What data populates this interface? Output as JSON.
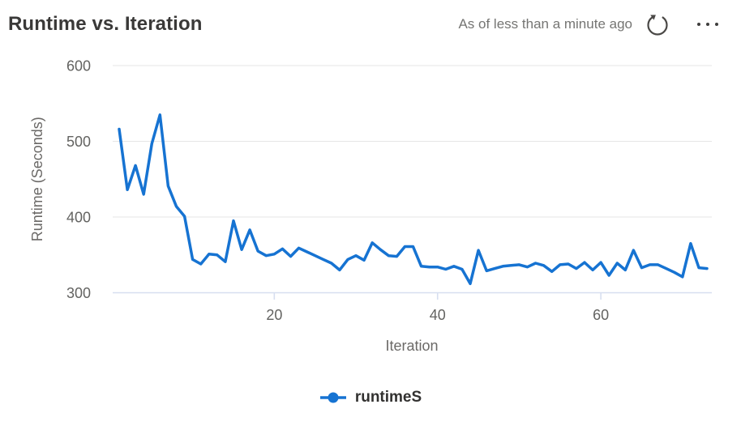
{
  "header": {
    "title": "Runtime vs. Iteration",
    "as_of_text": "As of less than a minute ago",
    "refresh_icon": "circular-refresh-arrow",
    "more_icon": "horizontal-ellipsis"
  },
  "colors": {
    "line": "#1673d2",
    "gridline": "#e6e6e6",
    "axis_baseline": "#d7dff0",
    "tick_text": "#636361",
    "title_text": "#3a3938",
    "as_of_text": "#757573",
    "icon": "#4a4846",
    "legend_text": "#323130"
  },
  "chart_data": {
    "type": "line",
    "title": "Runtime vs. Iteration",
    "xlabel": "Iteration",
    "ylabel": "Runtime (Seconds)",
    "xlim": [
      1,
      73
    ],
    "ylim": [
      300,
      600
    ],
    "yticks": [
      600,
      500,
      400,
      300
    ],
    "xticks": [
      20,
      40,
      60
    ],
    "grid": "horizontal-only",
    "legend_position": "bottom-center",
    "marker": "none-on-line, dot-in-legend",
    "series": [
      {
        "name": "runtimeS",
        "color": "#1673d2",
        "x_start": 1,
        "x_step": 1,
        "values": [
          516,
          436,
          468,
          430,
          497,
          535,
          441,
          414,
          401,
          344,
          338,
          351,
          350,
          341,
          395,
          357,
          383,
          355,
          349,
          351,
          358,
          348,
          359,
          354,
          349,
          344,
          339,
          330,
          344,
          349,
          343,
          366,
          357,
          349,
          348,
          361,
          361,
          335,
          334,
          334,
          331,
          335,
          331,
          312,
          356,
          329,
          332,
          335,
          336,
          337,
          334,
          339,
          336,
          328,
          337,
          338,
          332,
          340,
          330,
          340,
          323,
          339,
          330,
          356,
          333,
          337,
          337,
          332,
          327,
          321,
          365,
          333,
          332
        ]
      }
    ]
  }
}
